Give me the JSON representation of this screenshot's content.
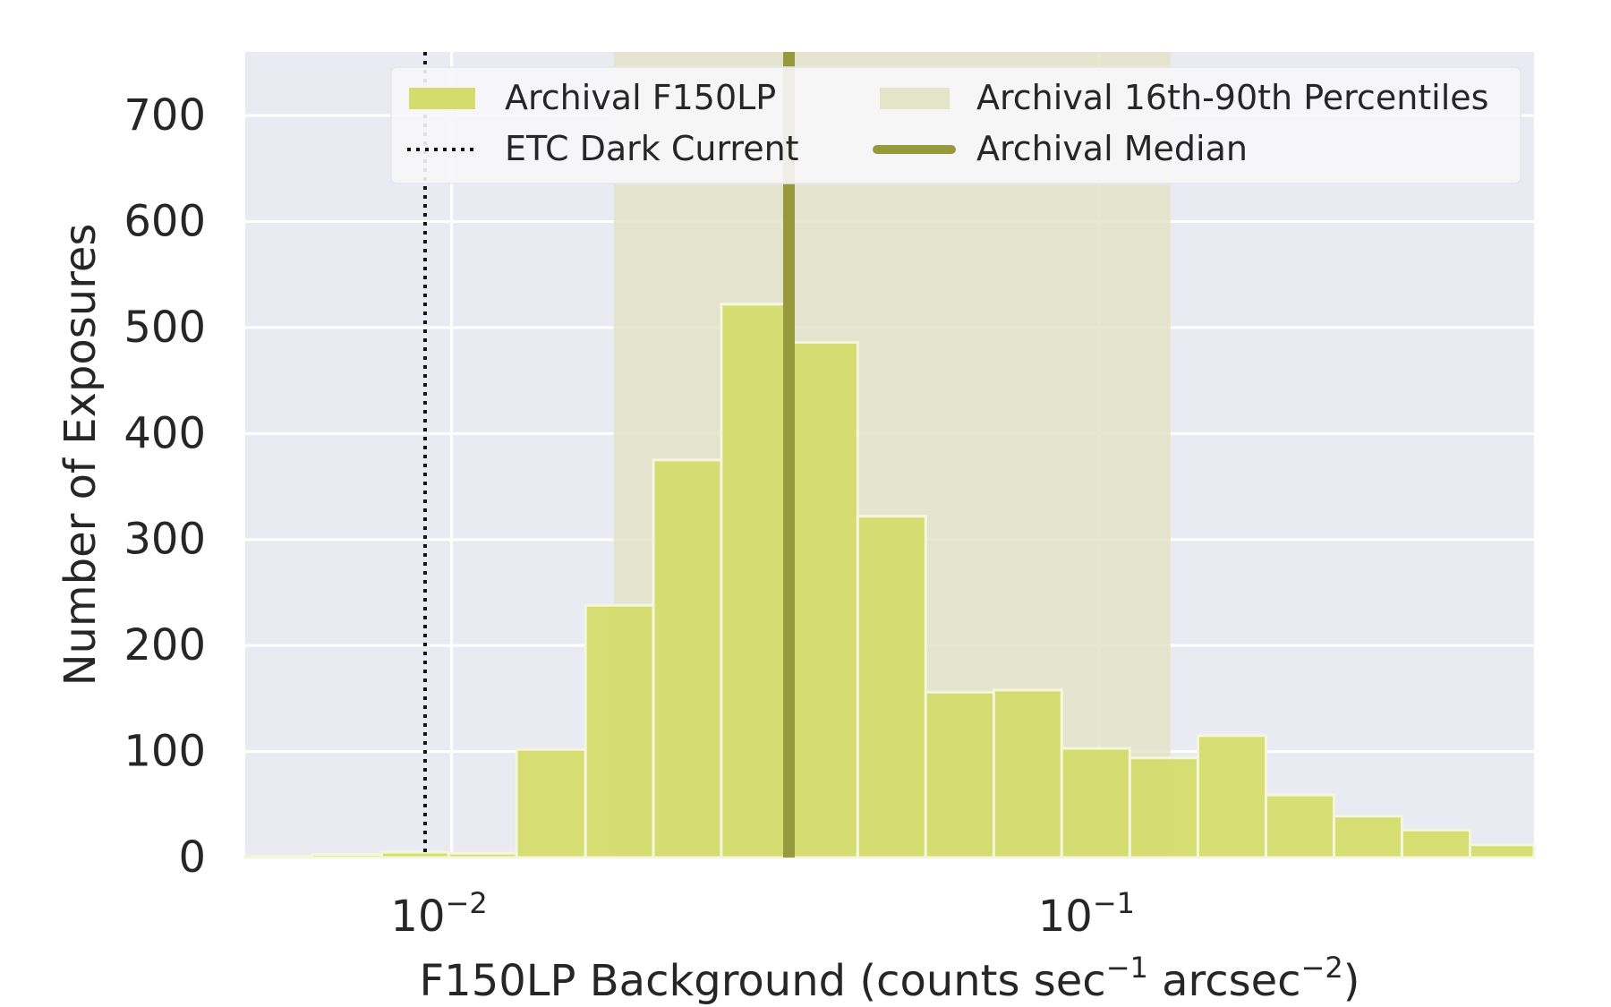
{
  "chart_data": {
    "type": "bar",
    "xlabel": "F150LP Background (counts sec",
    "xlabel_sup1": "−1",
    "xlabel_mid": " arcsec",
    "xlabel_sup2": "−2",
    "xlabel_end": ")",
    "ylabel": "Number of Exposures",
    "xscale": "log",
    "xlim": [
      0.0048,
      0.47
    ],
    "ylim": [
      0,
      760
    ],
    "y_ticks": [
      0,
      100,
      200,
      300,
      400,
      500,
      600,
      700
    ],
    "x_ticks": [
      {
        "value": 0.01,
        "base": "10",
        "exp": "−2"
      },
      {
        "value": 0.1,
        "base": "10",
        "exp": "−1"
      }
    ],
    "grid": true,
    "legend_placement": "top-right",
    "bins": [
      {
        "x0": 0.0048,
        "x1": 0.0061,
        "count": 1
      },
      {
        "x0": 0.0061,
        "x1": 0.0078,
        "count": 3
      },
      {
        "x0": 0.0078,
        "x1": 0.0099,
        "count": 5
      },
      {
        "x0": 0.0099,
        "x1": 0.0126,
        "count": 4
      },
      {
        "x0": 0.0126,
        "x1": 0.0161,
        "count": 102
      },
      {
        "x0": 0.0161,
        "x1": 0.0205,
        "count": 238
      },
      {
        "x0": 0.0205,
        "x1": 0.0261,
        "count": 375
      },
      {
        "x0": 0.0261,
        "x1": 0.0333,
        "count": 522
      },
      {
        "x0": 0.0333,
        "x1": 0.0424,
        "count": 486
      },
      {
        "x0": 0.0424,
        "x1": 0.054,
        "count": 322
      },
      {
        "x0": 0.054,
        "x1": 0.0688,
        "count": 156
      },
      {
        "x0": 0.0688,
        "x1": 0.0876,
        "count": 158
      },
      {
        "x0": 0.0876,
        "x1": 0.1116,
        "count": 103
      },
      {
        "x0": 0.1116,
        "x1": 0.1422,
        "count": 94
      },
      {
        "x0": 0.1422,
        "x1": 0.1811,
        "count": 115
      },
      {
        "x0": 0.1811,
        "x1": 0.2307,
        "count": 59
      },
      {
        "x0": 0.2307,
        "x1": 0.2938,
        "count": 39
      },
      {
        "x0": 0.2938,
        "x1": 0.3743,
        "count": 26
      },
      {
        "x0": 0.3743,
        "x1": 0.47,
        "count": 12
      }
    ],
    "percentile_band": [
      0.0178,
      0.129
    ],
    "archival_median": 0.0332,
    "etc_dark_current": 0.0091,
    "legend": [
      {
        "label": "Archival F150LP",
        "kind": "patch"
      },
      {
        "label": "ETC Dark Current",
        "kind": "dotted"
      },
      {
        "label": "Archival 16th-90th Percentiles",
        "kind": "band"
      },
      {
        "label": "Archival Median",
        "kind": "line"
      }
    ],
    "colors": {
      "plot_bg": "#eaeaf2",
      "grid": "#ffffff",
      "bar": "#d4dc6e",
      "bar_edge": "#f5f7dc",
      "band": "#e4e4c9",
      "median": "#969a3c",
      "dark_current": "#111111",
      "text": "#262626"
    }
  }
}
